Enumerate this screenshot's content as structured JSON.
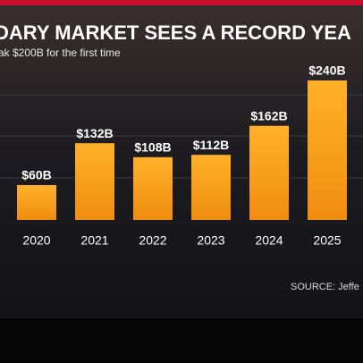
{
  "chart_data": {
    "type": "bar",
    "title": "DARY MARKET SEES A RECORD YEA",
    "subtitle": "ak $200B for the first time",
    "source": "SOURCE: Jeffe",
    "categories": [
      "2020",
      "2021",
      "2022",
      "2023",
      "2024",
      "2025"
    ],
    "values": [
      60,
      132,
      108,
      112,
      162,
      240
    ],
    "value_labels": [
      "$60B",
      "$132B",
      "$108B",
      "$112B",
      "$162B",
      "$240B"
    ],
    "color": "#f7a21b"
  }
}
